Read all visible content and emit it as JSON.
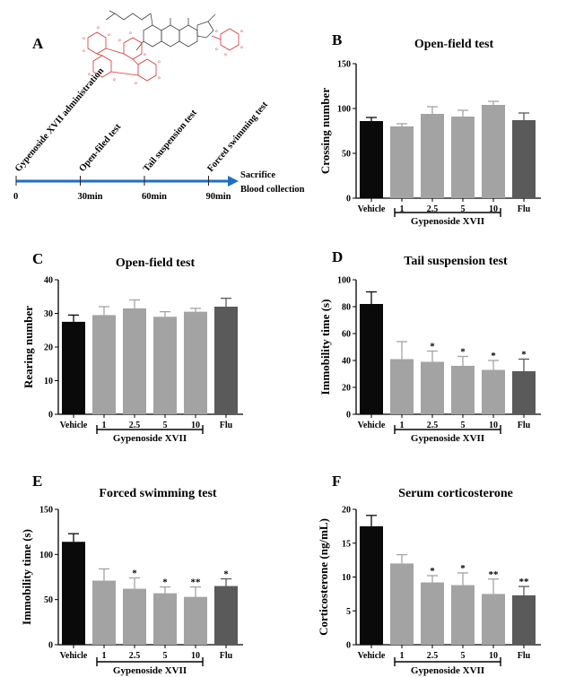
{
  "panel_a": {
    "label": "A",
    "events": [
      {
        "t": 0,
        "tick": "0",
        "text": "Gypenoside XVII administration"
      },
      {
        "t": 30,
        "tick": "30min",
        "text": "Open-filed test"
      },
      {
        "t": 60,
        "tick": "60min",
        "text": "Tail suspension test"
      },
      {
        "t": 90,
        "tick": "90min",
        "text": "Forced swimming test"
      }
    ],
    "end_lines": [
      "Sacrifice",
      "Blood collection"
    ],
    "colors": {
      "arrow": "#1f6fc1",
      "structure": "#e03030"
    },
    "structure_icon": "gypenoside-xvii-structure"
  },
  "chart_data": [
    {
      "panel": "B",
      "type": "bar",
      "title": "Open-field test",
      "ylabel": "Crossing number",
      "ylim": [
        0,
        150
      ],
      "yticks": [
        0,
        50,
        100,
        150
      ],
      "categories": [
        "Vehicle",
        "1",
        "2.5",
        "5",
        "10",
        "Flu"
      ],
      "values": [
        86,
        80,
        94,
        91,
        104,
        87
      ],
      "errors": [
        4,
        3,
        8,
        7,
        4,
        8
      ],
      "significance": [
        "",
        "",
        "",
        "",
        "",
        ""
      ],
      "group_label": "Gypenoside XVII"
    },
    {
      "panel": "C",
      "type": "bar",
      "title": "Open-field test",
      "ylabel": "Rearing number",
      "ylim": [
        0,
        40
      ],
      "yticks": [
        0,
        10,
        20,
        30,
        40
      ],
      "categories": [
        "Vehicle",
        "1",
        "2.5",
        "5",
        "10",
        "Flu"
      ],
      "values": [
        27.5,
        29.5,
        31.5,
        29,
        30.5,
        32
      ],
      "errors": [
        2,
        2.5,
        2.5,
        1.5,
        1,
        2.5
      ],
      "significance": [
        "",
        "",
        "",
        "",
        "",
        ""
      ],
      "group_label": "Gypenoside XVII"
    },
    {
      "panel": "D",
      "type": "bar",
      "title": "Tail suspension test",
      "ylabel": "Immobility time (s)",
      "ylim": [
        0,
        100
      ],
      "yticks": [
        0,
        20,
        40,
        60,
        80,
        100
      ],
      "categories": [
        "Vehicle",
        "1",
        "2.5",
        "5",
        "10",
        "Flu"
      ],
      "values": [
        82,
        41,
        39,
        36,
        33,
        32
      ],
      "errors": [
        9,
        13,
        8,
        7,
        7,
        9
      ],
      "significance": [
        "",
        "",
        "*",
        "*",
        "*",
        "*"
      ],
      "group_label": "Gypenoside XVII"
    },
    {
      "panel": "E",
      "type": "bar",
      "title": "Forced swimming test",
      "ylabel": "Immobility time (s)",
      "ylim": [
        0,
        150
      ],
      "yticks": [
        0,
        50,
        100,
        150
      ],
      "categories": [
        "Vehicle",
        "1",
        "2.5",
        "5",
        "10",
        "Flu"
      ],
      "values": [
        114,
        71,
        62,
        57,
        53,
        65
      ],
      "errors": [
        9,
        13,
        12,
        7,
        11,
        8
      ],
      "significance": [
        "",
        "",
        "*",
        "*",
        "**",
        "*"
      ],
      "group_label": "Gypenoside XVII"
    },
    {
      "panel": "F",
      "type": "bar",
      "title": "Serum corticosterone",
      "ylabel": "Corticosterone (ng/mL)",
      "ylim": [
        0,
        20
      ],
      "yticks": [
        0,
        5,
        10,
        15,
        20
      ],
      "categories": [
        "Vehicle",
        "1",
        "2.5",
        "5",
        "10",
        "Flu"
      ],
      "values": [
        17.5,
        12,
        9.2,
        8.8,
        7.5,
        7.3
      ],
      "errors": [
        1.6,
        1.3,
        1,
        1.8,
        2.2,
        1.3
      ],
      "significance": [
        "",
        "",
        "*",
        "*",
        "**",
        "**"
      ],
      "group_label": "Gypenoside XVII"
    }
  ],
  "bar_colors": [
    "#0a0a0a",
    "#a3a3a3",
    "#a3a3a3",
    "#a3a3a3",
    "#a3a3a3",
    "#5a5a5a"
  ]
}
